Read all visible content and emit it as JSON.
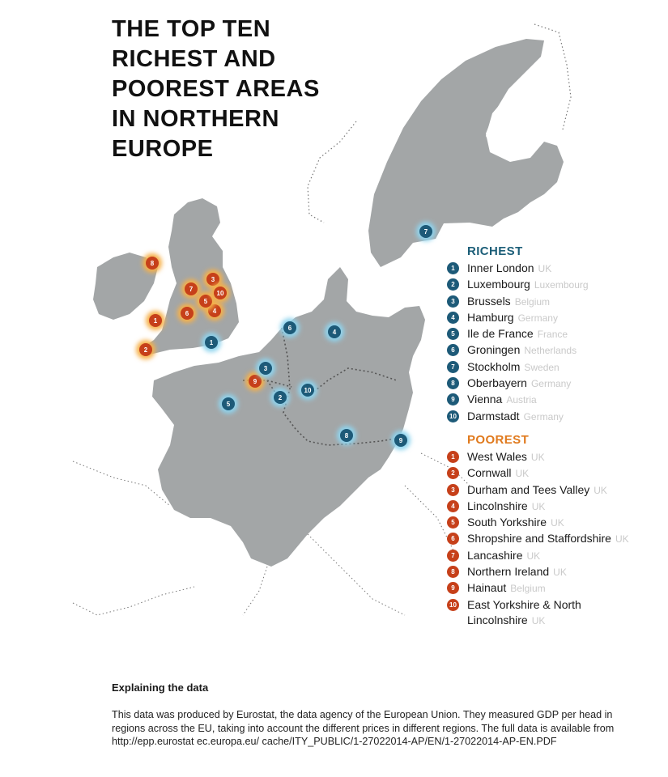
{
  "title_lines": [
    "THE TOP TEN",
    "RICHEST AND",
    "POOREST AREAS",
    "IN NORTHERN",
    "EUROPE"
  ],
  "colors": {
    "land": "#a3a6a7",
    "rich_marker": "#1d5a78",
    "rich_glow": "#8fd4ee",
    "poor_marker": "#c6401a",
    "poor_glow": "#f6b04a"
  },
  "richest": {
    "heading": "RICHEST",
    "items": [
      {
        "rank": "1",
        "name": "Inner London",
        "country": "UK"
      },
      {
        "rank": "2",
        "name": "Luxembourg",
        "country": "Luxembourg"
      },
      {
        "rank": "3",
        "name": "Brussels",
        "country": "Belgium"
      },
      {
        "rank": "4",
        "name": "Hamburg",
        "country": "Germany"
      },
      {
        "rank": "5",
        "name": "Ile de France",
        "country": "France"
      },
      {
        "rank": "6",
        "name": "Groningen",
        "country": "Netherlands"
      },
      {
        "rank": "7",
        "name": "Stockholm",
        "country": "Sweden"
      },
      {
        "rank": "8",
        "name": "Oberbayern",
        "country": "Germany"
      },
      {
        "rank": "9",
        "name": "Vienna",
        "country": "Austria"
      },
      {
        "rank": "10",
        "name": "Darmstadt",
        "country": "Germany"
      }
    ]
  },
  "poorest": {
    "heading": "POOREST",
    "items": [
      {
        "rank": "1",
        "name": "West Wales",
        "country": "UK"
      },
      {
        "rank": "2",
        "name": "Cornwall",
        "country": "UK"
      },
      {
        "rank": "3",
        "name": "Durham and Tees Valley",
        "country": "UK"
      },
      {
        "rank": "4",
        "name": "Lincolnshire",
        "country": "UK"
      },
      {
        "rank": "5",
        "name": "South Yorkshire",
        "country": "UK"
      },
      {
        "rank": "6",
        "name": "Shropshire and Staffordshire",
        "country": "UK"
      },
      {
        "rank": "7",
        "name": "Lancashire",
        "country": "UK"
      },
      {
        "rank": "8",
        "name": "Northern Ireland",
        "country": "UK"
      },
      {
        "rank": "9",
        "name": "Hainaut",
        "country": "Belgium"
      },
      {
        "rank": "10",
        "name": "East Yorkshire & North Lincolnshire",
        "country": "UK"
      }
    ]
  },
  "explain": {
    "title": "Explaining the data",
    "body": "This data was produced by Eurostat, the data agency of the European Union. They measured GDP per head in regions across the EU, taking into account the different prices in different regions. The full data is available from http://epp.eurostat ec.europa.eu/ cache/ITY_PUBLIC/1-27022014-AP/EN/1-27022014-AP-EN.PDF"
  }
}
